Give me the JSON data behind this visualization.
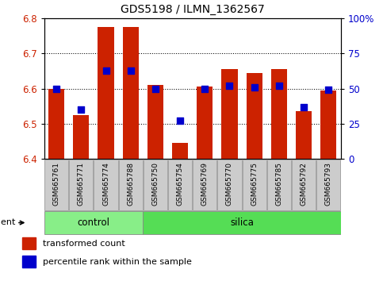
{
  "title": "GDS5198 / ILMN_1362567",
  "samples": [
    "GSM665761",
    "GSM665771",
    "GSM665774",
    "GSM665788",
    "GSM665750",
    "GSM665754",
    "GSM665769",
    "GSM665770",
    "GSM665775",
    "GSM665785",
    "GSM665792",
    "GSM665793"
  ],
  "groups": [
    "control",
    "control",
    "control",
    "control",
    "silica",
    "silica",
    "silica",
    "silica",
    "silica",
    "silica",
    "silica",
    "silica"
  ],
  "transformed_count": [
    6.6,
    6.525,
    6.775,
    6.775,
    6.61,
    6.445,
    6.605,
    6.655,
    6.645,
    6.655,
    6.535,
    6.595
  ],
  "percentile_rank": [
    50,
    35,
    63,
    63,
    50,
    27,
    50,
    52,
    51,
    52,
    37,
    49
  ],
  "ylim_left": [
    6.4,
    6.8
  ],
  "ylim_right": [
    0,
    100
  ],
  "yticks_left": [
    6.4,
    6.5,
    6.6,
    6.7,
    6.8
  ],
  "yticks_right": [
    0,
    25,
    50,
    75,
    100
  ],
  "bar_color": "#cc2200",
  "dot_color": "#0000cc",
  "control_color": "#88ee88",
  "silica_color": "#55dd55",
  "xticklabel_bg": "#cccccc",
  "legend_bar": "transformed count",
  "legend_dot": "percentile rank within the sample",
  "bar_bottom": 6.4,
  "bar_width": 0.65,
  "dot_size": 28,
  "n_control": 4,
  "n_silica": 8
}
